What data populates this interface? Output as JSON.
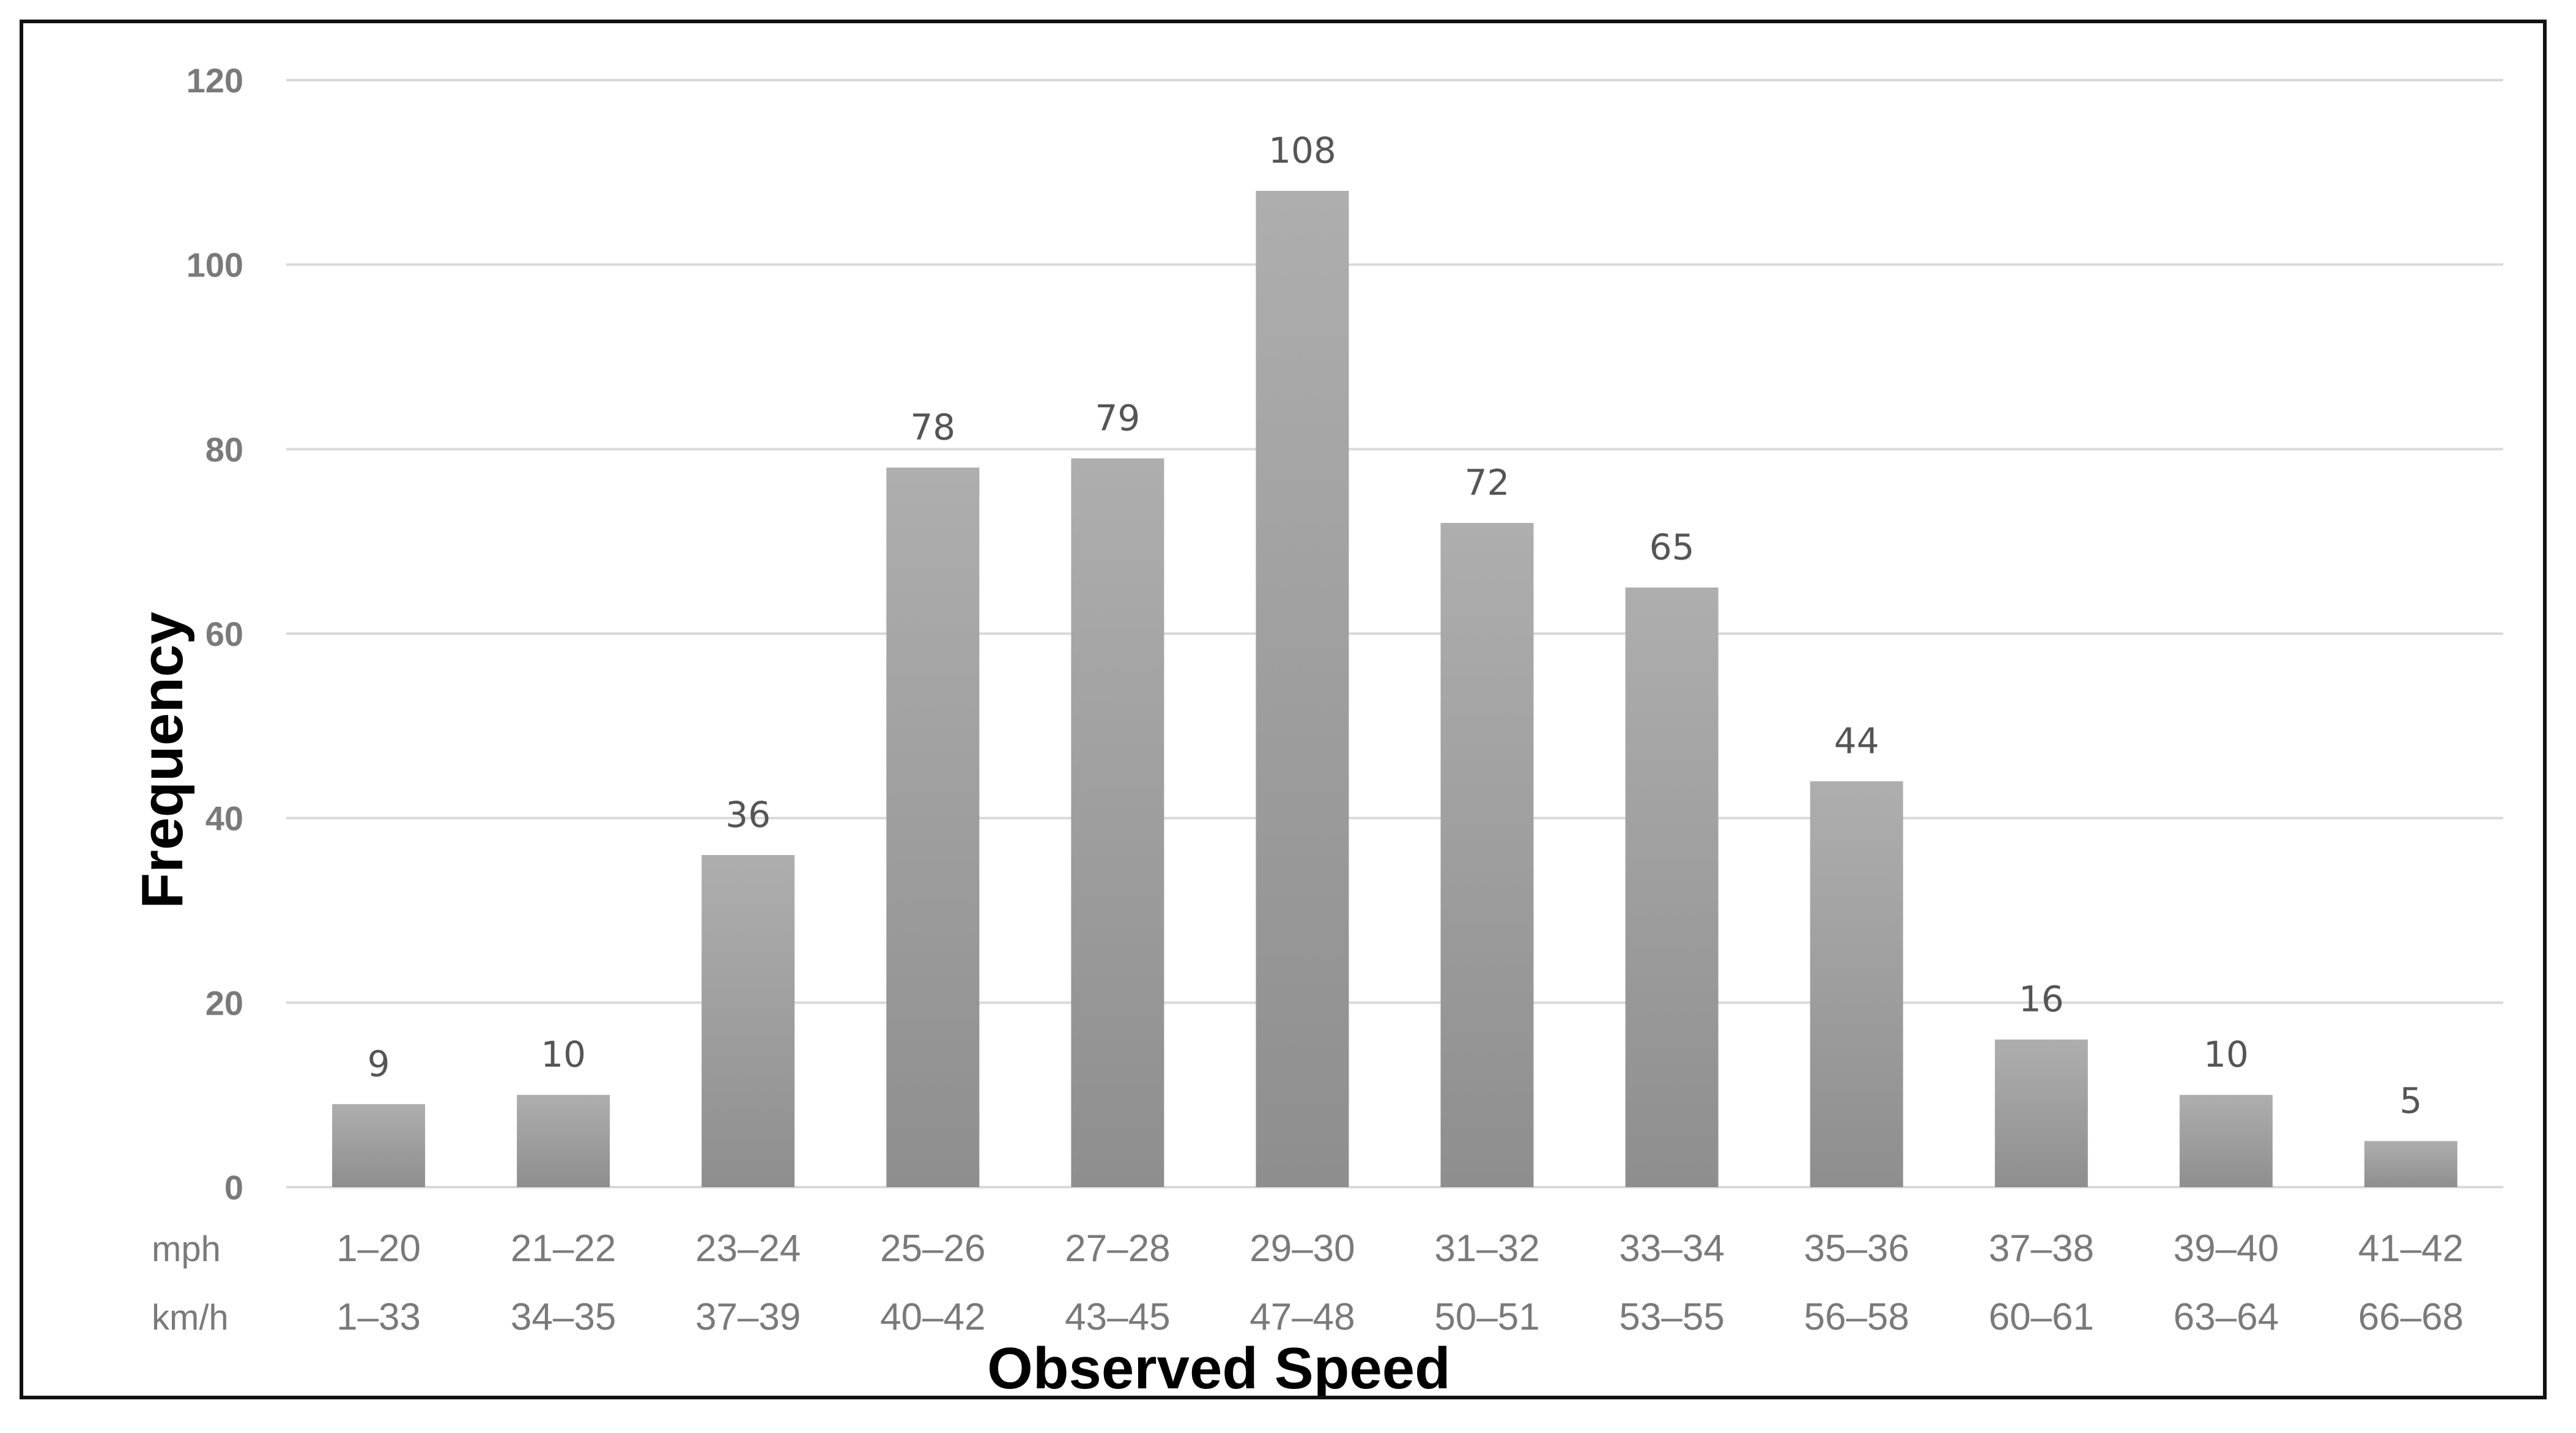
{
  "chart_data": {
    "type": "bar",
    "title": "",
    "xlabel": "Observed Speed",
    "ylabel": "Frequency",
    "ylim": [
      0,
      120
    ],
    "yticks": [
      0,
      20,
      40,
      60,
      80,
      100,
      120
    ],
    "grid": true,
    "legend": "none",
    "row_units": [
      "mph",
      "km/h"
    ],
    "categories_mph": [
      "1–20",
      "21–22",
      "23–24",
      "25–26",
      "27–28",
      "29–30",
      "31–32",
      "33–34",
      "35–36",
      "37–38",
      "39–40",
      "41–42"
    ],
    "categories_kmh": [
      "1–33",
      "34–35",
      "37–39",
      "40–42",
      "43–45",
      "47–48",
      "50–51",
      "53–55",
      "56–58",
      "60–61",
      "63–64",
      "66–68"
    ],
    "values": [
      9,
      10,
      36,
      78,
      79,
      108,
      72,
      65,
      44,
      16,
      10,
      5
    ],
    "bar_color": "#a3a3a3"
  }
}
